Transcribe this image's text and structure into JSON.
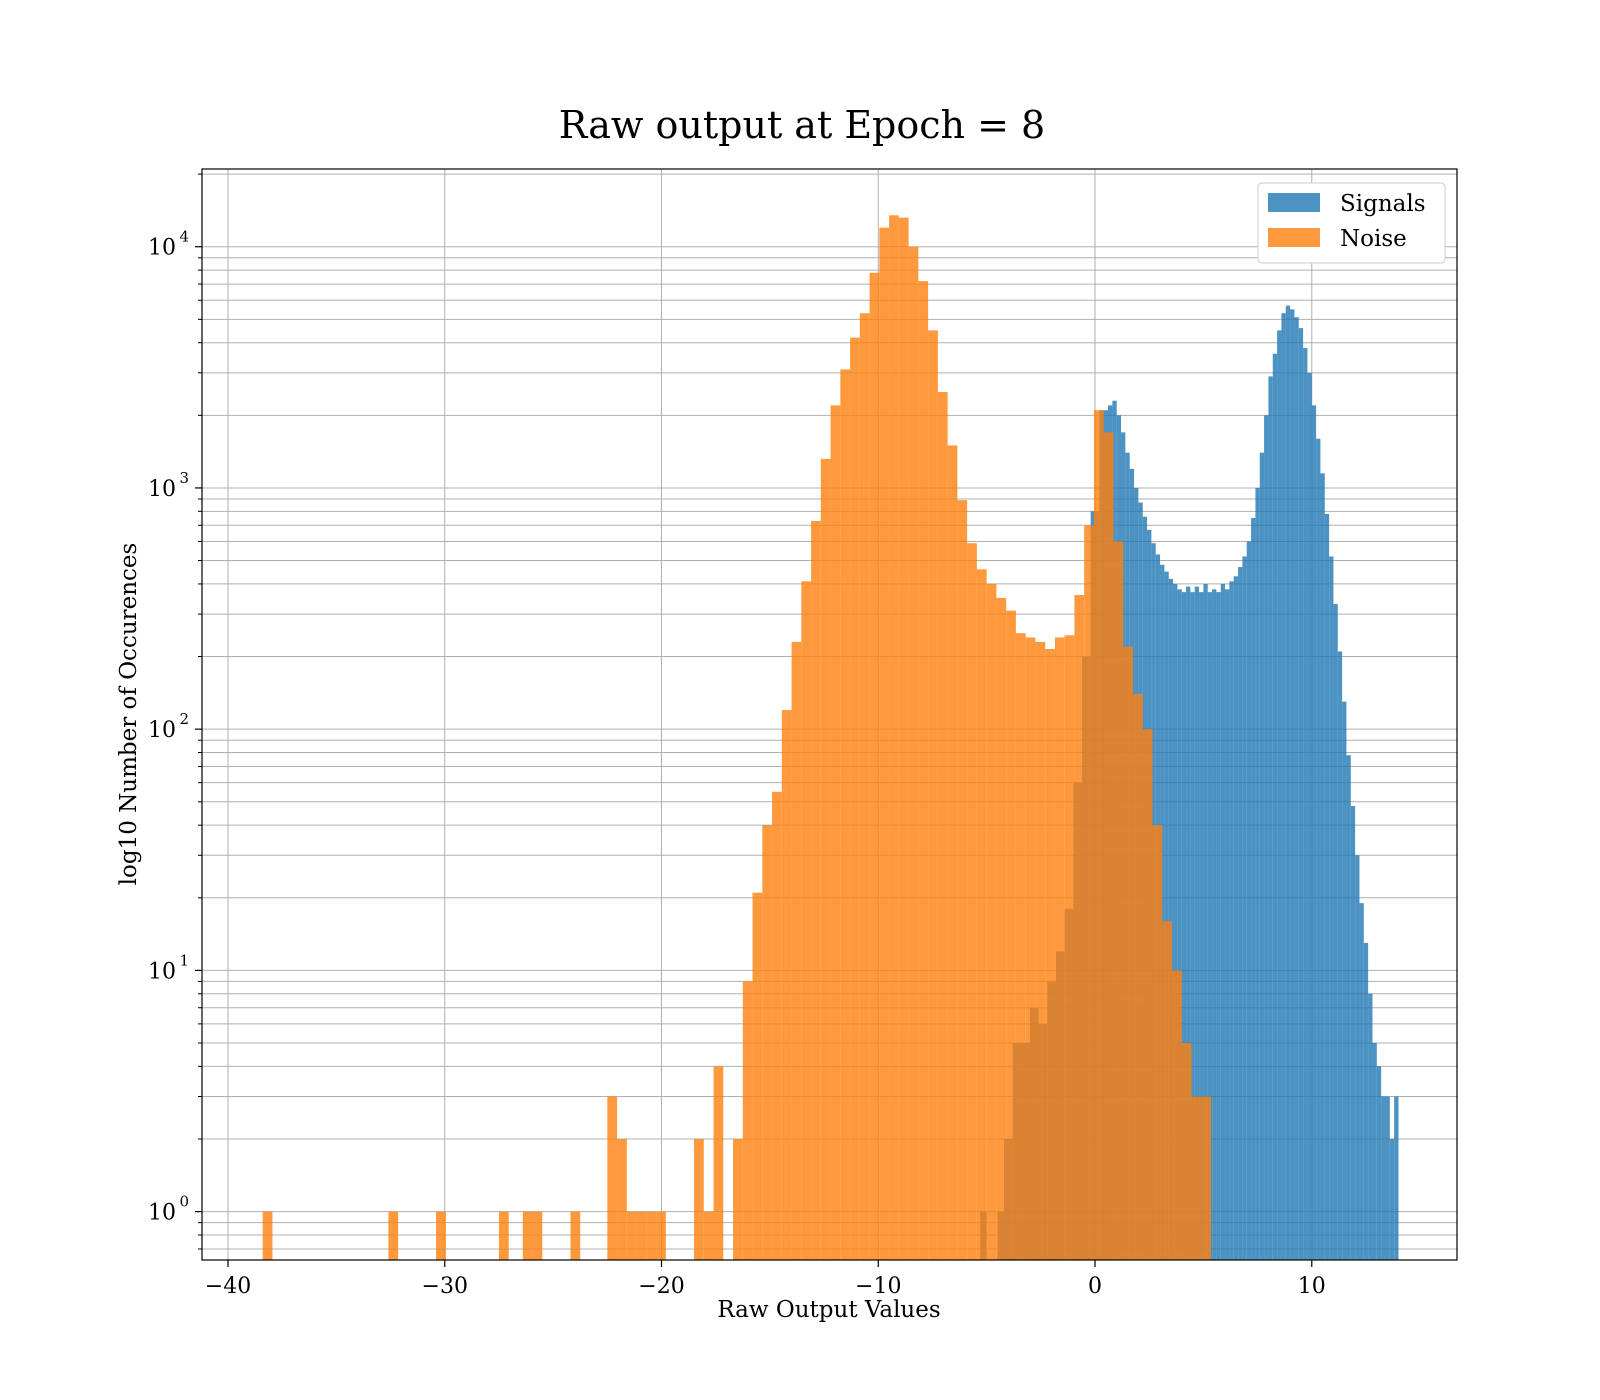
{
  "chart_data": {
    "type": "histogram",
    "title": "Raw output at Epoch = 8",
    "xlabel": "Raw Output Values",
    "ylabel": "log10 Number of Occurences",
    "xlim": [
      -41.2,
      16.7
    ],
    "ylim": [
      0.63,
      21000
    ],
    "yscale": "log",
    "grid": true,
    "legend_position": "top-right",
    "x_ticks": [
      {
        "value": -40,
        "label": "−40"
      },
      {
        "value": -30,
        "label": "−30"
      },
      {
        "value": -20,
        "label": "−20"
      },
      {
        "value": -10,
        "label": "−10"
      },
      {
        "value": 0,
        "label": "0"
      },
      {
        "value": 10,
        "label": "10"
      }
    ],
    "y_ticks": [
      {
        "value": 1,
        "base": "10",
        "exp": "0"
      },
      {
        "value": 10,
        "base": "10",
        "exp": "1"
      },
      {
        "value": 100,
        "base": "10",
        "exp": "2"
      },
      {
        "value": 1000,
        "base": "10",
        "exp": "3"
      },
      {
        "value": 10000,
        "base": "10",
        "exp": "4"
      }
    ],
    "series": [
      {
        "name": "Signals",
        "color": "#1f77b4",
        "opacity": 0.8,
        "bins": [
          [
            -5.3,
            -5.0,
            1
          ],
          [
            -4.5,
            -4.2,
            1
          ],
          [
            -4.2,
            -3.8,
            2
          ],
          [
            -3.8,
            -3.4,
            5
          ],
          [
            -3.4,
            -3.0,
            5
          ],
          [
            -3.0,
            -2.6,
            7
          ],
          [
            -2.6,
            -2.2,
            6
          ],
          [
            -2.2,
            -1.8,
            9
          ],
          [
            -1.8,
            -1.4,
            12
          ],
          [
            -1.4,
            -1.0,
            18
          ],
          [
            -1.0,
            -0.6,
            60
          ],
          [
            -0.6,
            -0.2,
            200
          ],
          [
            -0.2,
            0.2,
            800
          ],
          [
            0.2,
            0.6,
            2100
          ],
          [
            0.6,
            0.8,
            2200
          ],
          [
            0.8,
            1.0,
            2300
          ],
          [
            1.0,
            1.2,
            2000
          ],
          [
            1.2,
            1.4,
            1700
          ],
          [
            1.4,
            1.6,
            1400
          ],
          [
            1.6,
            1.8,
            1200
          ],
          [
            1.8,
            2.0,
            1000
          ],
          [
            2.0,
            2.2,
            870
          ],
          [
            2.2,
            2.4,
            760
          ],
          [
            2.4,
            2.6,
            670
          ],
          [
            2.6,
            2.8,
            590
          ],
          [
            2.8,
            3.0,
            530
          ],
          [
            3.0,
            3.2,
            480
          ],
          [
            3.2,
            3.4,
            450
          ],
          [
            3.4,
            3.6,
            420
          ],
          [
            3.6,
            3.8,
            400
          ],
          [
            3.8,
            4.0,
            380
          ],
          [
            4.0,
            4.2,
            370
          ],
          [
            4.2,
            4.4,
            390
          ],
          [
            4.4,
            4.6,
            370
          ],
          [
            4.6,
            4.8,
            390
          ],
          [
            4.8,
            5.0,
            370
          ],
          [
            5.0,
            5.2,
            400
          ],
          [
            5.2,
            5.4,
            370
          ],
          [
            5.4,
            5.6,
            380
          ],
          [
            5.6,
            5.8,
            370
          ],
          [
            5.8,
            6.0,
            400
          ],
          [
            6.0,
            6.2,
            380
          ],
          [
            6.2,
            6.4,
            410
          ],
          [
            6.4,
            6.6,
            430
          ],
          [
            6.6,
            6.8,
            470
          ],
          [
            6.8,
            7.0,
            520
          ],
          [
            7.0,
            7.2,
            600
          ],
          [
            7.2,
            7.4,
            750
          ],
          [
            7.4,
            7.6,
            1000
          ],
          [
            7.6,
            7.8,
            1400
          ],
          [
            7.8,
            8.0,
            2000
          ],
          [
            8.0,
            8.2,
            2900
          ],
          [
            8.2,
            8.4,
            3600
          ],
          [
            8.4,
            8.6,
            4500
          ],
          [
            8.6,
            8.8,
            5300
          ],
          [
            8.8,
            9.0,
            5700
          ],
          [
            9.0,
            9.2,
            5500
          ],
          [
            9.2,
            9.4,
            5100
          ],
          [
            9.4,
            9.6,
            4600
          ],
          [
            9.6,
            9.8,
            3800
          ],
          [
            9.8,
            10.0,
            3000
          ],
          [
            10.0,
            10.2,
            2200
          ],
          [
            10.2,
            10.4,
            1600
          ],
          [
            10.4,
            10.6,
            1150
          ],
          [
            10.6,
            10.8,
            780
          ],
          [
            10.8,
            11.0,
            520
          ],
          [
            11.0,
            11.2,
            330
          ],
          [
            11.2,
            11.4,
            210
          ],
          [
            11.4,
            11.6,
            130
          ],
          [
            11.6,
            11.8,
            78
          ],
          [
            11.8,
            12.0,
            48
          ],
          [
            12.0,
            12.2,
            30
          ],
          [
            12.2,
            12.4,
            19
          ],
          [
            12.4,
            12.6,
            13
          ],
          [
            12.6,
            12.8,
            8
          ],
          [
            12.8,
            13.0,
            5
          ],
          [
            13.0,
            13.2,
            4
          ],
          [
            13.2,
            13.4,
            3
          ],
          [
            13.4,
            13.6,
            3
          ],
          [
            13.6,
            13.8,
            2
          ],
          [
            13.8,
            14.0,
            3
          ]
        ]
      },
      {
        "name": "Noise",
        "color": "#ff7f0e",
        "opacity": 0.8,
        "bins": [
          [
            -38.4,
            -37.95,
            1
          ],
          [
            -32.6,
            -32.15,
            1
          ],
          [
            -30.4,
            -29.95,
            1
          ],
          [
            -27.5,
            -27.05,
            1
          ],
          [
            -26.4,
            -25.95,
            1
          ],
          [
            -25.95,
            -25.5,
            1
          ],
          [
            -24.2,
            -23.75,
            1
          ],
          [
            -22.5,
            -22.05,
            3
          ],
          [
            -22.05,
            -21.6,
            2
          ],
          [
            -21.6,
            -21.15,
            1
          ],
          [
            -21.15,
            -20.7,
            1
          ],
          [
            -20.7,
            -20.25,
            1
          ],
          [
            -20.25,
            -19.8,
            1
          ],
          [
            -18.5,
            -18.05,
            2
          ],
          [
            -18.05,
            -17.6,
            1
          ],
          [
            -17.6,
            -17.15,
            4
          ],
          [
            -16.7,
            -16.25,
            2
          ],
          [
            -16.25,
            -15.8,
            9
          ],
          [
            -15.8,
            -15.35,
            21
          ],
          [
            -15.35,
            -14.9,
            40
          ],
          [
            -14.9,
            -14.45,
            55
          ],
          [
            -14.45,
            -14.0,
            120
          ],
          [
            -14.0,
            -13.55,
            230
          ],
          [
            -13.55,
            -13.1,
            410
          ],
          [
            -13.1,
            -12.65,
            730
          ],
          [
            -12.65,
            -12.2,
            1320
          ],
          [
            -12.2,
            -11.75,
            2200
          ],
          [
            -11.75,
            -11.3,
            3100
          ],
          [
            -11.3,
            -10.85,
            4200
          ],
          [
            -10.85,
            -10.4,
            5300
          ],
          [
            -10.4,
            -9.95,
            7800
          ],
          [
            -9.95,
            -9.5,
            12000
          ],
          [
            -9.5,
            -9.05,
            13500
          ],
          [
            -9.05,
            -8.6,
            13200
          ],
          [
            -8.6,
            -8.15,
            10000
          ],
          [
            -8.15,
            -7.7,
            7200
          ],
          [
            -7.7,
            -7.25,
            4500
          ],
          [
            -7.25,
            -6.8,
            2500
          ],
          [
            -6.8,
            -6.35,
            1500
          ],
          [
            -6.35,
            -5.9,
            890
          ],
          [
            -5.9,
            -5.45,
            590
          ],
          [
            -5.45,
            -5.0,
            460
          ],
          [
            -5.0,
            -4.55,
            400
          ],
          [
            -4.55,
            -4.1,
            350
          ],
          [
            -4.1,
            -3.65,
            310
          ],
          [
            -3.65,
            -3.2,
            250
          ],
          [
            -3.2,
            -2.75,
            240
          ],
          [
            -2.75,
            -2.3,
            230
          ],
          [
            -2.3,
            -1.85,
            215
          ],
          [
            -1.85,
            -1.4,
            240
          ],
          [
            -1.4,
            -0.95,
            245
          ],
          [
            -0.95,
            -0.5,
            360
          ],
          [
            -0.5,
            -0.05,
            700
          ],
          [
            -0.05,
            0.4,
            2100
          ],
          [
            0.4,
            0.85,
            1700
          ],
          [
            0.85,
            1.3,
            600
          ],
          [
            1.3,
            1.75,
            220
          ],
          [
            1.75,
            2.2,
            140
          ],
          [
            2.2,
            2.65,
            100
          ],
          [
            2.65,
            3.1,
            40
          ],
          [
            3.1,
            3.55,
            16
          ],
          [
            3.55,
            4.0,
            10
          ],
          [
            4.0,
            4.45,
            5
          ],
          [
            4.45,
            4.9,
            3
          ],
          [
            4.9,
            5.35,
            3
          ]
        ]
      }
    ]
  }
}
